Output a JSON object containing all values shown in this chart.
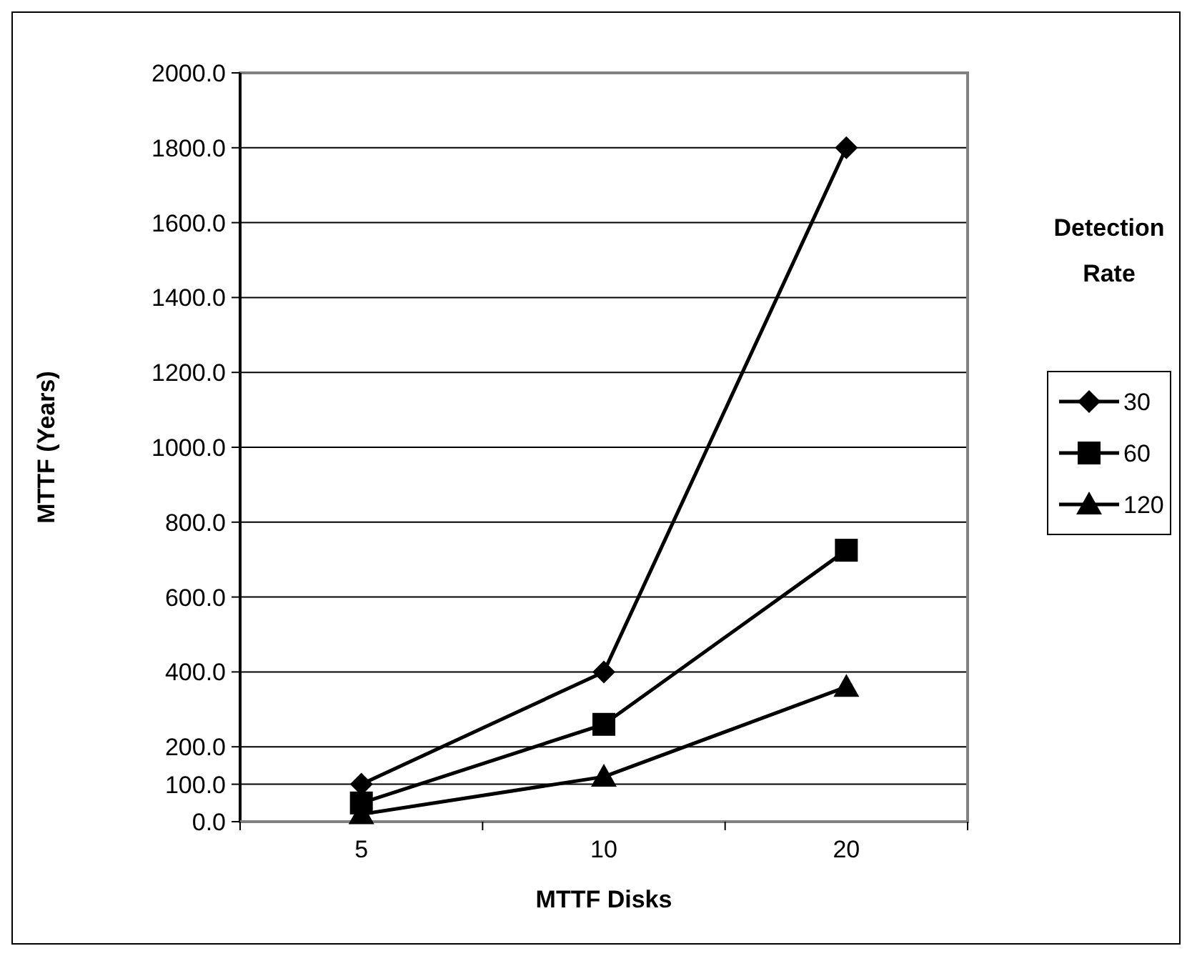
{
  "chart_data": {
    "type": "line",
    "xlabel": "MTTF Disks",
    "ylabel": "MTTF (Years)",
    "legend_title": "Detection Rate",
    "categories": [
      "5",
      "10",
      "20"
    ],
    "ylim": [
      0,
      2000
    ],
    "yticks": [
      {
        "value": 0,
        "label": "0.0"
      },
      {
        "value": 100,
        "label": "100.0"
      },
      {
        "value": 200,
        "label": "200.0"
      },
      {
        "value": 400,
        "label": "400.0"
      },
      {
        "value": 600,
        "label": "600.0"
      },
      {
        "value": 800,
        "label": "800.0"
      },
      {
        "value": 1000,
        "label": "1000.0"
      },
      {
        "value": 1200,
        "label": "1200.0"
      },
      {
        "value": 1400,
        "label": "1400.0"
      },
      {
        "value": 1600,
        "label": "1600.0"
      },
      {
        "value": 1800,
        "label": "1800.0"
      },
      {
        "value": 2000,
        "label": "2000.0"
      }
    ],
    "grid": "y",
    "legend": "right",
    "series": [
      {
        "name": "30",
        "color": "#000000",
        "marker": "diamond",
        "values": [
          100,
          400,
          1800
        ]
      },
      {
        "name": "60",
        "color": "#000000",
        "marker": "square",
        "values": [
          50,
          260,
          725
        ]
      },
      {
        "name": "120",
        "color": "#000000",
        "marker": "triangle",
        "values": [
          20,
          120,
          360
        ]
      }
    ]
  }
}
